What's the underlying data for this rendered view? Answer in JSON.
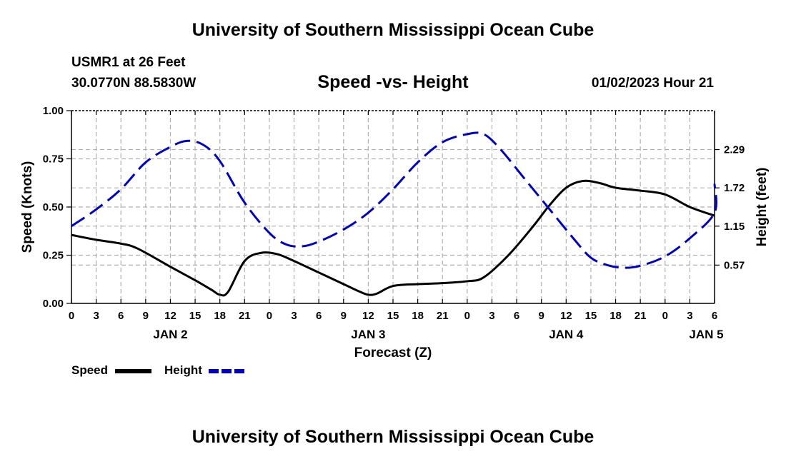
{
  "page": {
    "title_top": "University of Southern Mississippi Ocean Cube",
    "title_bottom": "University of Southern Mississippi Ocean Cube",
    "station_line": "USMR1 at 26 Feet",
    "coords_line": "30.0770N  88.5830W",
    "date_line": "01/02/2023 Hour 21"
  },
  "chart_data": {
    "type": "line",
    "title": "Speed -vs- Height",
    "xlabel": "Forecast (Z)",
    "ylabel_left": "Speed (Knots)",
    "ylabel_right": "Height (feet)",
    "x_range": [
      0,
      78
    ],
    "x_ticks": [
      0,
      3,
      6,
      9,
      12,
      15,
      18,
      21,
      24,
      27,
      30,
      33,
      36,
      39,
      42,
      45,
      48,
      51,
      54,
      57,
      60,
      63,
      66,
      69,
      72,
      75,
      78
    ],
    "x_tick_labels": [
      "0",
      "3",
      "6",
      "9",
      "12",
      "15",
      "18",
      "21",
      "0",
      "3",
      "6",
      "9",
      "12",
      "15",
      "18",
      "21",
      "0",
      "3",
      "6",
      "9",
      "12",
      "15",
      "18",
      "21",
      "0",
      "3",
      "6"
    ],
    "day_labels": [
      {
        "x": 12,
        "text": "JAN 2"
      },
      {
        "x": 36,
        "text": "JAN 3"
      },
      {
        "x": 60,
        "text": "JAN 4"
      },
      {
        "x": 77,
        "text": "JAN 5"
      }
    ],
    "ylim_left": [
      0,
      1
    ],
    "y_ticks_left": [
      0,
      0.25,
      0.5,
      0.75,
      1.0
    ],
    "y_tick_labels_left": [
      "0.00",
      "0.25",
      "0.50",
      "0.75",
      "1.00"
    ],
    "ylim_right": [
      0.0,
      2.87
    ],
    "y_ticks_right": [
      0.57,
      1.15,
      1.72,
      2.29
    ],
    "y_tick_labels_right": [
      "0.57",
      "1.15",
      "1.72",
      "2.29"
    ],
    "grid": true,
    "series": [
      {
        "name": "Speed",
        "axis": "left",
        "color": "#000000",
        "style": "solid",
        "points": [
          [
            0,
            0.355
          ],
          [
            3,
            0.33
          ],
          [
            6,
            0.31
          ],
          [
            8,
            0.285
          ],
          [
            12,
            0.19
          ],
          [
            15,
            0.12
          ],
          [
            17,
            0.07
          ],
          [
            18,
            0.045
          ],
          [
            19,
            0.06
          ],
          [
            21,
            0.22
          ],
          [
            23,
            0.262
          ],
          [
            25,
            0.255
          ],
          [
            27,
            0.22
          ],
          [
            30,
            0.16
          ],
          [
            33,
            0.1
          ],
          [
            35,
            0.06
          ],
          [
            36,
            0.045
          ],
          [
            37,
            0.05
          ],
          [
            39,
            0.09
          ],
          [
            42,
            0.1
          ],
          [
            45,
            0.105
          ],
          [
            48,
            0.115
          ],
          [
            50,
            0.135
          ],
          [
            53,
            0.25
          ],
          [
            56,
            0.4
          ],
          [
            58,
            0.51
          ],
          [
            60,
            0.6
          ],
          [
            62,
            0.635
          ],
          [
            64,
            0.625
          ],
          [
            66,
            0.6
          ],
          [
            69,
            0.585
          ],
          [
            72,
            0.565
          ],
          [
            75,
            0.5
          ],
          [
            78,
            0.455
          ]
        ]
      },
      {
        "name": "Height",
        "axis": "right",
        "color": "#0000cc",
        "style": "dashed",
        "points": [
          [
            0,
            1.15
          ],
          [
            3,
            1.4
          ],
          [
            6,
            1.7
          ],
          [
            9,
            2.1
          ],
          [
            12,
            2.33
          ],
          [
            14,
            2.42
          ],
          [
            16,
            2.36
          ],
          [
            18,
            2.12
          ],
          [
            21,
            1.5
          ],
          [
            24,
            1.05
          ],
          [
            26,
            0.88
          ],
          [
            28,
            0.85
          ],
          [
            30,
            0.92
          ],
          [
            33,
            1.1
          ],
          [
            36,
            1.35
          ],
          [
            39,
            1.7
          ],
          [
            42,
            2.1
          ],
          [
            45,
            2.4
          ],
          [
            48,
            2.52
          ],
          [
            50,
            2.52
          ],
          [
            52,
            2.3
          ],
          [
            55,
            1.85
          ],
          [
            58,
            1.4
          ],
          [
            61,
            0.95
          ],
          [
            63,
            0.68
          ],
          [
            65,
            0.57
          ],
          [
            67,
            0.53
          ],
          [
            69,
            0.56
          ],
          [
            72,
            0.7
          ],
          [
            75,
            0.97
          ],
          [
            78,
            1.35
          ],
          [
            78,
            1.78
          ]
        ]
      }
    ],
    "legend": [
      {
        "label": "Speed",
        "color": "#000000",
        "style": "solid"
      },
      {
        "label": "Height",
        "color": "#0000cc",
        "style": "dashed"
      }
    ]
  }
}
